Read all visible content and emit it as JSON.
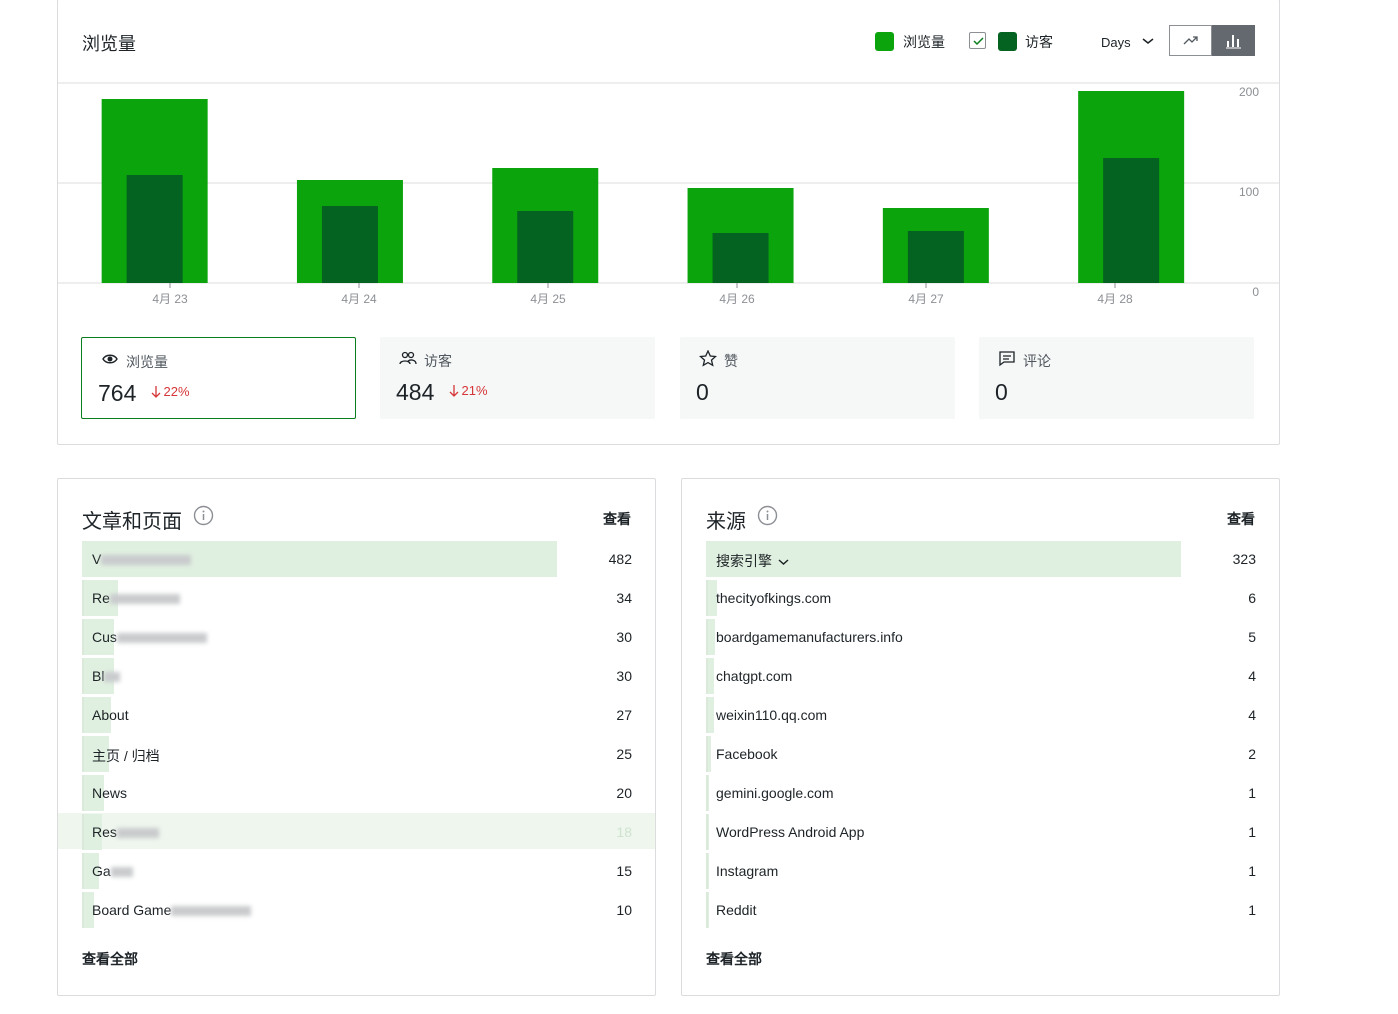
{
  "chart_data": {
    "type": "bar",
    "title": "浏览量",
    "period": "Days",
    "categories": [
      "4月 23",
      "4月 24",
      "4月 25",
      "4月 26",
      "4月 27",
      "4月 28"
    ],
    "series": [
      {
        "name": "浏览量",
        "color": "#0ca40c",
        "values": [
          184,
          103,
          115,
          95,
          75,
          192
        ]
      },
      {
        "name": "访客",
        "color": "#046320",
        "values": [
          108,
          77,
          72,
          50,
          52,
          125
        ]
      }
    ],
    "ylim": [
      0,
      200
    ],
    "yticks": [
      0,
      100,
      200
    ],
    "grid": true
  },
  "stats": [
    {
      "label": "浏览量",
      "value": 764,
      "change": "22%"
    },
    {
      "label": "访客",
      "value": 484,
      "change": "21%"
    },
    {
      "label": "赞",
      "value": 0
    },
    {
      "label": "评论",
      "value": 0
    }
  ],
  "posts": {
    "title": "文章和页面",
    "column": "查看",
    "footer": "查看全部",
    "rows": [
      {
        "label": "V",
        "value": 482
      },
      {
        "label": "Re",
        "value": 34
      },
      {
        "label": "Cus",
        "value": 30
      },
      {
        "label": "Bl",
        "value": 30
      },
      {
        "label": "About",
        "value": 27
      },
      {
        "label": "主页 / 归档",
        "value": 25
      },
      {
        "label": "News",
        "value": 20
      },
      {
        "label": "Res",
        "value": 18
      },
      {
        "label": "Ga",
        "value": 15
      },
      {
        "label": "Board Game",
        "value": 10
      }
    ]
  },
  "referrers": {
    "title": "来源",
    "column": "查看",
    "footer": "查看全部",
    "rows": [
      {
        "label": "搜索引擎",
        "value": 323
      },
      {
        "label": "thecityofkings.com",
        "value": 6
      },
      {
        "label": "boardgamemanufacturers.info",
        "value": 5
      },
      {
        "label": "chatgpt.com",
        "value": 4
      },
      {
        "label": "weixin110.qq.com",
        "value": 4
      },
      {
        "label": "Facebook",
        "value": 2
      },
      {
        "label": "gemini.google.com",
        "value": 1
      },
      {
        "label": "WordPress Android App",
        "value": 1
      },
      {
        "label": "Instagram",
        "value": 1
      },
      {
        "label": "Reddit",
        "value": 1
      }
    ]
  }
}
